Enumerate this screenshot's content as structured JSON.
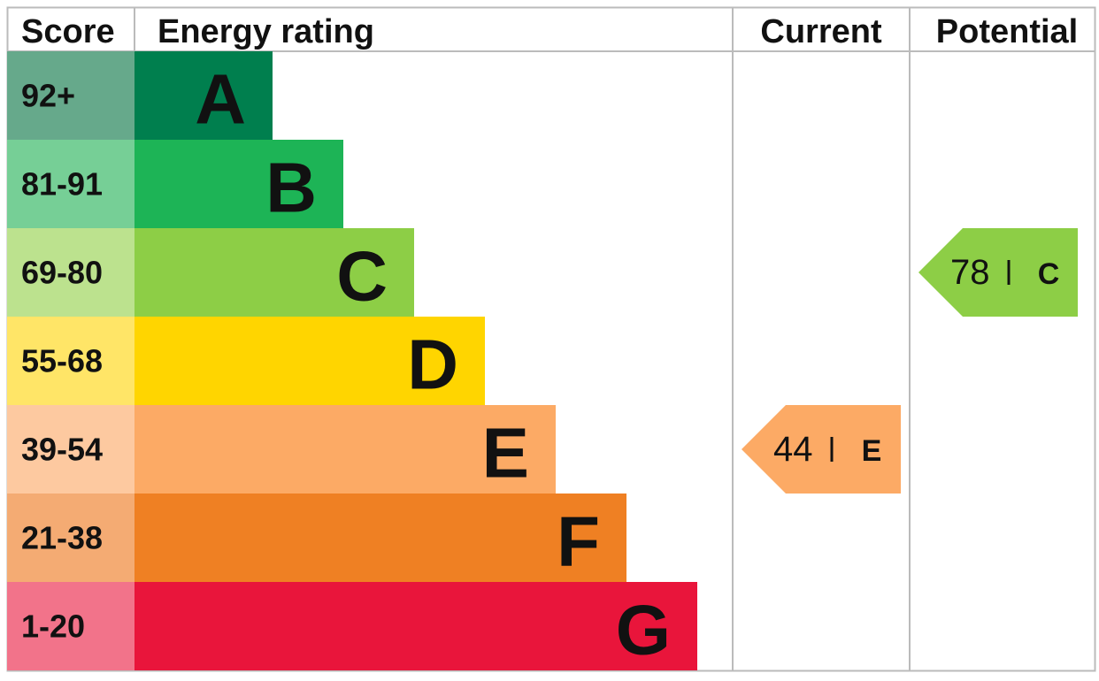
{
  "header": {
    "score": "Score",
    "rating": "Energy rating",
    "current": "Current",
    "potential": "Potential"
  },
  "bands": [
    {
      "score": "92+",
      "letter": "A",
      "color": "#007f4e",
      "score_color": "#66a98b"
    },
    {
      "score": "81-91",
      "letter": "B",
      "color": "#1db456",
      "score_color": "#76cf96"
    },
    {
      "score": "69-80",
      "letter": "C",
      "color": "#8dce46",
      "score_color": "#bce28e"
    },
    {
      "score": "55-68",
      "letter": "D",
      "color": "#ffd500",
      "score_color": "#ffe567"
    },
    {
      "score": "39-54",
      "letter": "E",
      "color": "#fcaa65",
      "score_color": "#fdc9a0"
    },
    {
      "score": "21-38",
      "letter": "F",
      "color": "#ef8023",
      "score_color": "#f4ab73"
    },
    {
      "score": "1-20",
      "letter": "G",
      "color": "#e9153b",
      "score_color": "#f2738a"
    }
  ],
  "current": {
    "value": 44,
    "letter": "E"
  },
  "potential": {
    "value": 78,
    "letter": "C"
  }
}
